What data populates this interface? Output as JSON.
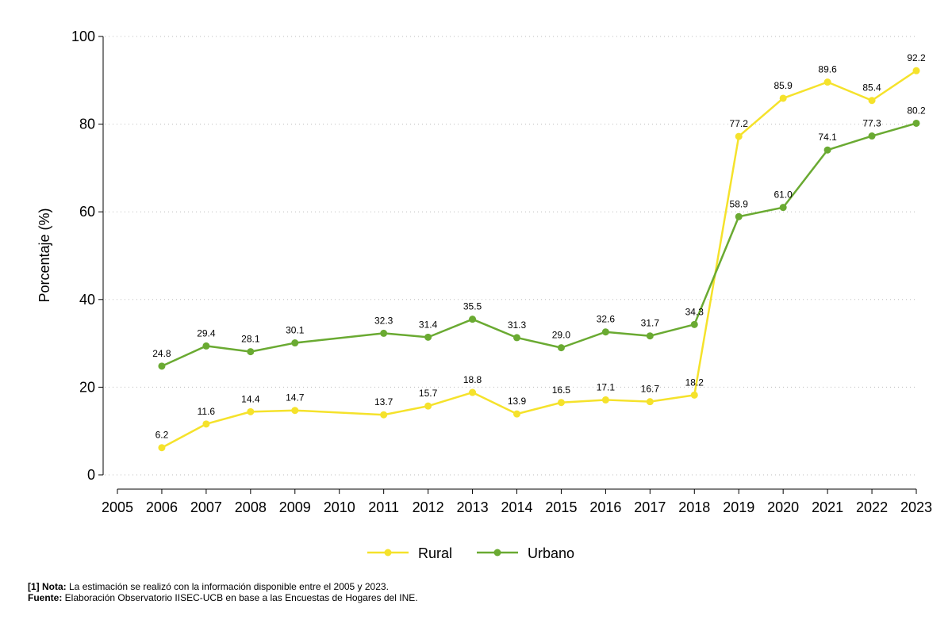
{
  "chart_data": {
    "type": "line",
    "x": [
      "2006",
      "2007",
      "2008",
      "2009",
      "2011",
      "2012",
      "2013",
      "2014",
      "2015",
      "2016",
      "2017",
      "2018",
      "2019",
      "2020",
      "2021",
      "2022",
      "2023"
    ],
    "x_ticks": [
      "2005",
      "2006",
      "2007",
      "2008",
      "2009",
      "2010",
      "2011",
      "2012",
      "2013",
      "2014",
      "2015",
      "2016",
      "2017",
      "2018",
      "2019",
      "2020",
      "2021",
      "2022",
      "2023"
    ],
    "series": [
      {
        "name": "Rural",
        "color": "#f5e22b",
        "values": [
          6.2,
          11.6,
          14.4,
          14.7,
          13.7,
          15.7,
          18.8,
          13.9,
          16.5,
          17.1,
          16.7,
          18.2,
          77.2,
          85.9,
          89.6,
          85.4,
          92.2
        ],
        "labels": [
          "6.2",
          "11.6",
          "14.4",
          "14.7",
          "13.7",
          "15.7",
          "18.8",
          "13.9",
          "16.5",
          "17.1",
          "16.7",
          "18.2",
          "77.2",
          "85.9",
          "89.6",
          "85.4",
          "92.2"
        ]
      },
      {
        "name": "Urbano",
        "color": "#6aaa32",
        "values": [
          24.8,
          29.4,
          28.1,
          30.1,
          32.3,
          31.4,
          35.5,
          31.3,
          29.0,
          32.6,
          31.7,
          34.3,
          58.9,
          61.0,
          74.1,
          77.3,
          80.2
        ],
        "labels": [
          "24.8",
          "29.4",
          "28.1",
          "30.1",
          "32.3",
          "31.4",
          "35.5",
          "31.3",
          "29.0",
          "32.6",
          "31.7",
          "34.3",
          "58.9",
          "61.0",
          "74.1",
          "77.3",
          "80.2"
        ]
      }
    ],
    "ylabel": "Porcentaje (%)",
    "xlabel": "",
    "ylim": [
      0,
      100
    ],
    "y_ticks": [
      0,
      20,
      40,
      60,
      80,
      100
    ],
    "grid": true,
    "legend": "bottom-center"
  },
  "notes": {
    "nota_label": "[1] Nota:",
    "nota_text": " La estimación se realizó con la información disponible entre el 2005 y 2023.",
    "fuente_label": "Fuente:",
    "fuente_text": " Elaboración Observatorio IISEC-UCB en base a las Encuestas de Hogares del INE."
  }
}
